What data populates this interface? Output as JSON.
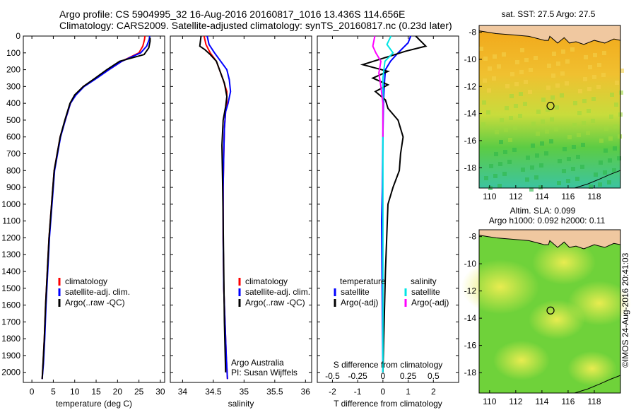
{
  "header": {
    "line1": "Argo profile: CS 5904995_32 16-Aug-2016 20160817_1016 13.436S 114.656E",
    "line2": "Climatology: CARS2009. Satellite-adjusted climatology: synTS_20160817.nc (0.23d later)"
  },
  "colors": {
    "climatology": "#ff0000",
    "satellite": "#0000ff",
    "argo": "#000000",
    "sat_salinity": "#00e5e5",
    "argo_salinity": "#ff00ff"
  },
  "chart_data": [
    {
      "type": "line",
      "xlabel": "temperature (deg C)",
      "xlim": [
        -2,
        31
      ],
      "xticks": [
        0,
        5,
        10,
        15,
        20,
        25,
        30
      ],
      "ylim": [
        0,
        2060
      ],
      "yticks": [
        0,
        100,
        200,
        300,
        400,
        500,
        600,
        700,
        800,
        900,
        1000,
        1100,
        1200,
        1300,
        1400,
        1500,
        1600,
        1700,
        1800,
        1900,
        2000
      ],
      "legend": [
        "climatology",
        "satellite-adj. clim.",
        "Argo(..raw -QC)"
      ],
      "legend_position": "lower-right",
      "series": [
        {
          "name": "climatology",
          "color": "#ff0000",
          "x": [
            26.4,
            26.3,
            25.9,
            25.0,
            21.0,
            18.0,
            15.0,
            12.0,
            10.2,
            9.0,
            7.8,
            6.6,
            5.9,
            5.2,
            4.6,
            4.0,
            3.6,
            3.2,
            2.9,
            2.6,
            2.4
          ],
          "y": [
            0,
            20,
            60,
            100,
            150,
            200,
            250,
            300,
            350,
            400,
            500,
            600,
            700,
            800,
            1000,
            1200,
            1400,
            1600,
            1800,
            1950,
            2040
          ]
        },
        {
          "name": "satellite-adj. clim.",
          "color": "#0000ff",
          "x": [
            27.5,
            27.4,
            26.8,
            25.4,
            21.0,
            18.0,
            15.2,
            12.2,
            10.3,
            9.0,
            7.8,
            6.7,
            6.0,
            5.3,
            4.7,
            4.1,
            3.7,
            3.3,
            3.0,
            2.7,
            2.4
          ],
          "y": [
            0,
            20,
            60,
            100,
            150,
            200,
            250,
            300,
            350,
            400,
            500,
            600,
            700,
            800,
            1000,
            1200,
            1400,
            1600,
            1800,
            1950,
            2040
          ]
        },
        {
          "name": "Argo(..raw -QC)",
          "color": "#000000",
          "x": [
            27.6,
            27.6,
            27.3,
            26.2,
            20.5,
            17.5,
            14.8,
            12.0,
            10.0,
            8.9,
            7.7,
            6.6,
            5.9,
            5.2,
            4.6,
            4.0,
            3.6,
            3.2,
            2.9,
            2.6,
            2.4
          ],
          "y": [
            10,
            30,
            70,
            110,
            150,
            200,
            250,
            300,
            350,
            400,
            500,
            600,
            700,
            800,
            1000,
            1200,
            1400,
            1600,
            1800,
            1950,
            2040
          ]
        }
      ]
    },
    {
      "type": "line",
      "xlabel": "salinity",
      "xlim": [
        33.8,
        36.1
      ],
      "xticks": [
        34,
        34.5,
        35,
        35.5,
        36
      ],
      "ylim": [
        0,
        2060
      ],
      "legend": [
        "climatology",
        "satellite-adj. clim.",
        "Argo(..raw -QC)"
      ],
      "legend_position": "lower-right",
      "annotations": [
        "Argo Australia",
        "PI: Susan Wijffels"
      ],
      "series": [
        {
          "name": "climatology",
          "color": "#ff0000",
          "x": [
            34.35,
            34.38,
            34.45,
            34.55,
            34.6,
            34.66,
            34.72,
            34.72,
            34.7,
            34.68,
            34.67,
            34.66,
            34.66,
            34.67,
            34.69,
            34.7,
            34.71,
            34.73
          ],
          "y": [
            0,
            50,
            100,
            150,
            200,
            260,
            330,
            400,
            450,
            550,
            700,
            900,
            1200,
            1500,
            1700,
            1800,
            1900,
            2040
          ]
        },
        {
          "name": "satellite-adj. clim.",
          "color": "#0000ff",
          "x": [
            34.4,
            34.43,
            34.52,
            34.62,
            34.72,
            34.76,
            34.78,
            34.74,
            34.7,
            34.68,
            34.67,
            34.66,
            34.66,
            34.67,
            34.69,
            34.7,
            34.71,
            34.73
          ],
          "y": [
            0,
            50,
            100,
            150,
            200,
            260,
            330,
            400,
            450,
            550,
            700,
            900,
            1200,
            1500,
            1700,
            1800,
            1900,
            2040
          ]
        },
        {
          "name": "Argo(..raw -QC)",
          "color": "#000000",
          "x": [
            34.3,
            34.28,
            34.36,
            34.45,
            34.55,
            34.6,
            34.68,
            34.72,
            34.7,
            34.66,
            34.64,
            34.65,
            34.66,
            34.67,
            34.68,
            34.7
          ],
          "y": [
            0,
            60,
            80,
            110,
            150,
            200,
            280,
            360,
            420,
            500,
            650,
            850,
            1100,
            1400,
            1700,
            2000
          ]
        }
      ]
    },
    {
      "type": "line",
      "xlabel": "T difference from climatology",
      "xlabel_top": "S difference from climatology",
      "xlim": [
        -2.6,
        3.0
      ],
      "xticks": [
        -2,
        -1,
        0,
        1,
        2
      ],
      "xticks_top": [
        -0.5,
        -0.25,
        0,
        0.25,
        0.5
      ],
      "xticks_top_labels": [
        "-0.5",
        "-0.25",
        "0",
        "0.25",
        "0.5"
      ],
      "ylim": [
        0,
        2060
      ],
      "legend_temperature": [
        "temperature",
        "satellite",
        "Argo(-adj)"
      ],
      "legend_salinity": [
        "salinity",
        "satellite",
        "Argo(-adj)"
      ],
      "series": [
        {
          "name": "satellite",
          "color": "#0000ff",
          "x": [
            1.1,
            1.0,
            0.6,
            0.3,
            0.1,
            0.05,
            0.02,
            0.0,
            -0.02,
            -0.05,
            -0.03,
            0.0
          ],
          "y": [
            0,
            40,
            100,
            150,
            200,
            300,
            400,
            600,
            900,
            1100,
            1500,
            2000
          ]
        },
        {
          "name": "Argo(-adj)",
          "color": "#000000",
          "x": [
            1.3,
            1.7,
            0.9,
            -0.8,
            0.2,
            -0.4,
            0.2,
            -0.3,
            0.1,
            0.2,
            0.6,
            0.8,
            0.7,
            0.65,
            0.4,
            0.2,
            0.15,
            0.1,
            0.05,
            0.0
          ],
          "y": [
            0,
            60,
            90,
            170,
            210,
            250,
            290,
            330,
            380,
            430,
            500,
            600,
            700,
            800,
            900,
            1000,
            1200,
            1400,
            1700,
            2000
          ]
        },
        {
          "name": "sat salinity",
          "color": "#00e5e5",
          "x": [
            0.08,
            0.04,
            0.1,
            0.02,
            0.0,
            0.0,
            0.0,
            0.0,
            0.0,
            0.0
          ],
          "x_units": "S",
          "y": [
            0,
            50,
            100,
            150,
            250,
            400,
            700,
            1000,
            1500,
            2000
          ]
        },
        {
          "name": "Argo salinity",
          "color": "#ff00ff",
          "x": [
            -0.08,
            -0.1,
            -0.07,
            -0.02,
            -0.04,
            -0.02,
            0.0,
            0.0,
            0.0
          ],
          "x_units": "S",
          "y": [
            0,
            60,
            100,
            150,
            220,
            300,
            400,
            500,
            600
          ]
        }
      ]
    },
    {
      "type": "heatmap",
      "title": "sat. SST: 27.5 Argo: 27.5",
      "xticks": [
        110,
        112,
        114,
        116,
        118
      ],
      "yticks": [
        -8,
        -10,
        -12,
        -14,
        -16,
        -18
      ],
      "xlim": [
        109.2,
        120.0
      ],
      "ylim": [
        -19.5,
        -7.5
      ],
      "marker": {
        "lon": 114.656,
        "lat": -13.436
      }
    },
    {
      "type": "heatmap",
      "title": "Altim. SLA: 0.099",
      "subtitle": "Argo h1000: 0.092 h2000: 0.11",
      "xticks": [
        110,
        112,
        114,
        116,
        118
      ],
      "yticks": [
        -8,
        -10,
        -12,
        -14,
        -16,
        -18
      ],
      "xlim": [
        109.2,
        120.0
      ],
      "ylim": [
        -19.5,
        -7.5
      ],
      "marker": {
        "lon": 114.656,
        "lat": -13.436
      }
    }
  ],
  "side_label": "©IMOS 24-Aug-2016 20:41:03"
}
